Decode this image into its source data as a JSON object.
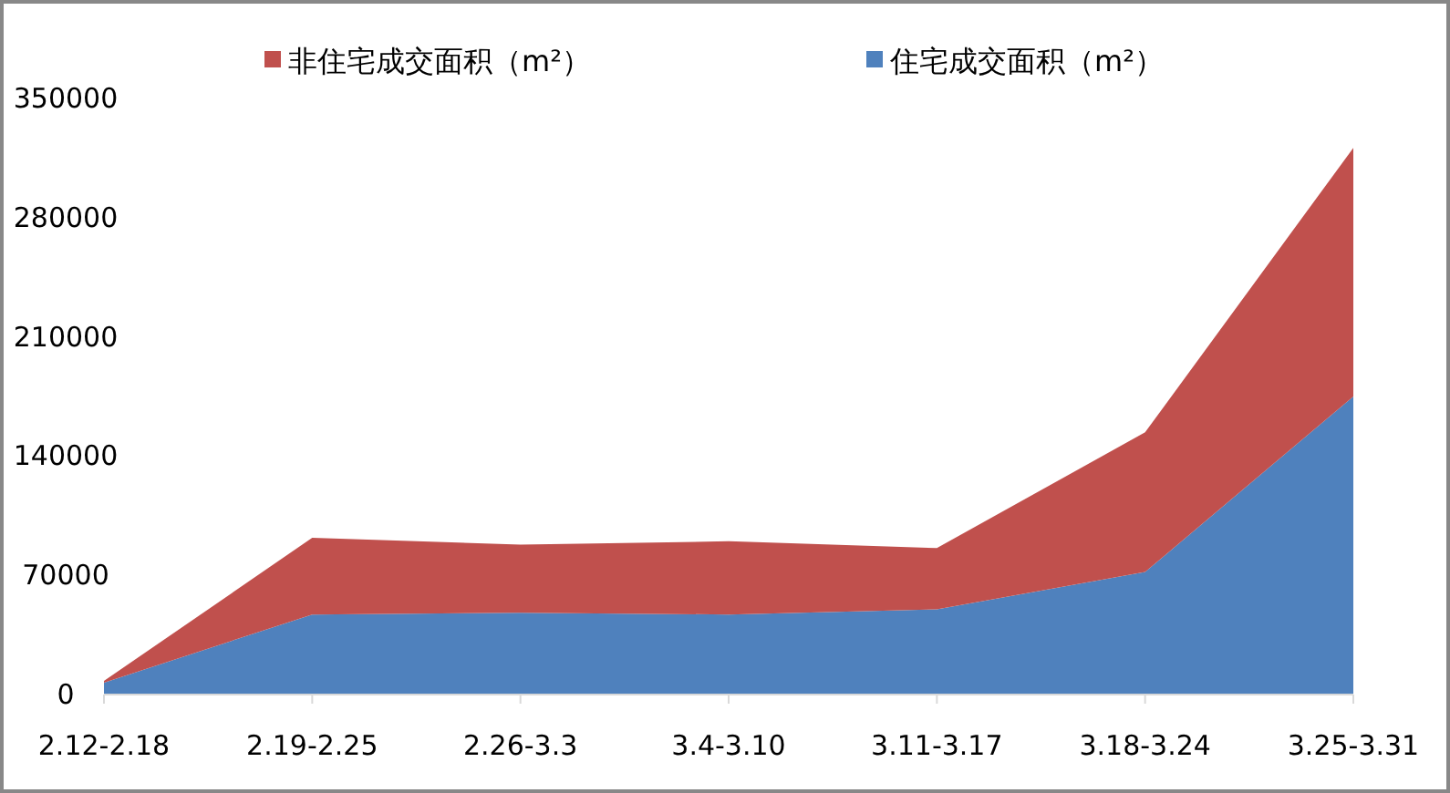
{
  "chart_data": {
    "type": "area",
    "stacked": true,
    "legend": "top",
    "grid": false,
    "categories": [
      "2.12-2.18",
      "2.19-2.25",
      "2.26-3.3",
      "3.4-3.10",
      "3.11-3.17",
      "3.18-3.24",
      "3.25-3.31"
    ],
    "ylim": [
      0,
      350000
    ],
    "yticks": [
      0,
      70000,
      140000,
      210000,
      280000,
      350000
    ],
    "series": [
      {
        "name": "住宅成交面积（m²）",
        "color": "#4f81bd",
        "values": [
          7000,
          47000,
          48000,
          47000,
          50000,
          72000,
          175000
        ]
      },
      {
        "name": "非住宅成交面积（m²）",
        "color": "#c0504d",
        "values": [
          1000,
          45000,
          40000,
          43000,
          36000,
          82000,
          146000
        ]
      }
    ]
  }
}
